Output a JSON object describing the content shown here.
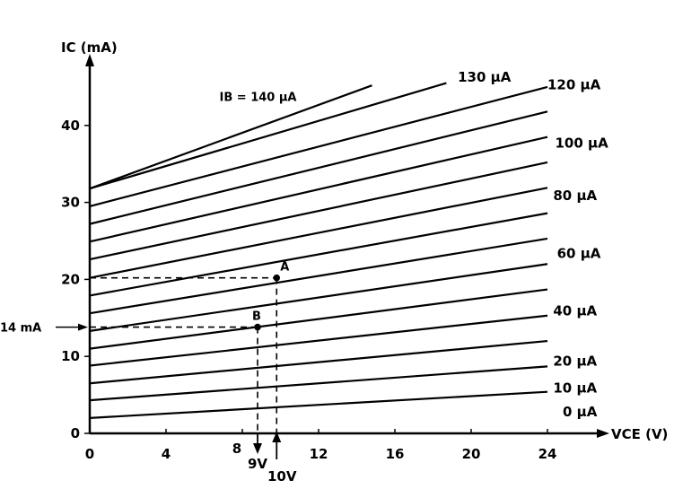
{
  "chart_data": {
    "type": "line",
    "title": "",
    "xlabel": "VCE (V)",
    "ylabel": "IC (mA)",
    "xlim": [
      0,
      24
    ],
    "ylim": [
      0,
      45
    ],
    "xticks": [
      0,
      4,
      8,
      12,
      16,
      20,
      24
    ],
    "yticks": [
      0,
      10,
      20,
      30,
      40
    ],
    "grid": false,
    "legend": "none",
    "series": [
      {
        "x": [
          0,
          24
        ],
        "y": [
          2.0,
          5.4
        ]
      },
      {
        "x": [
          0,
          24
        ],
        "y": [
          4.3,
          8.7
        ]
      },
      {
        "x": [
          0,
          24
        ],
        "y": [
          6.5,
          12.0
        ]
      },
      {
        "x": [
          0,
          24
        ],
        "y": [
          8.8,
          15.3
        ]
      },
      {
        "x": [
          0,
          24
        ],
        "y": [
          11.0,
          18.7
        ]
      },
      {
        "x": [
          0,
          24
        ],
        "y": [
          13.3,
          22.0
        ]
      },
      {
        "x": [
          0,
          24
        ],
        "y": [
          15.6,
          25.3
        ]
      },
      {
        "x": [
          0,
          24
        ],
        "y": [
          17.9,
          28.6
        ]
      },
      {
        "x": [
          0,
          24
        ],
        "y": [
          20.2,
          31.9
        ]
      },
      {
        "x": [
          0,
          24
        ],
        "y": [
          22.6,
          35.2
        ]
      },
      {
        "x": [
          0,
          24
        ],
        "y": [
          24.9,
          38.5
        ]
      },
      {
        "x": [
          0,
          24
        ],
        "y": [
          27.2,
          41.8
        ]
      },
      {
        "x": [
          0,
          24
        ],
        "y": [
          29.5,
          45.0
        ]
      },
      {
        "x": [
          0,
          18.7
        ],
        "y": [
          31.8,
          45.5
        ]
      },
      {
        "x": [
          0,
          14.8
        ],
        "y": [
          31.8,
          45.2
        ]
      }
    ],
    "curve_labels": [
      {
        "text": "0 µA",
        "x": 24.8,
        "y": 2.2
      },
      {
        "text": "10 µA",
        "x": 24.3,
        "y": 5.3
      },
      {
        "text": "20 µA",
        "x": 24.3,
        "y": 8.8
      },
      {
        "text": "40 µA",
        "x": 24.3,
        "y": 15.3
      },
      {
        "text": "60 µA",
        "x": 24.5,
        "y": 22.8
      },
      {
        "text": "80 µA",
        "x": 24.3,
        "y": 30.3
      },
      {
        "text": "100 µA",
        "x": 24.4,
        "y": 37.1
      },
      {
        "text": "120 µA",
        "x": 24.0,
        "y": 44.7
      },
      {
        "text": "130 µA",
        "x": 19.3,
        "y": 45.7
      },
      {
        "text": "IB = 140 µA",
        "x": 6.8,
        "y": 43.2
      }
    ],
    "points": [
      {
        "label": "A",
        "x": 9.8,
        "y": 20.2
      },
      {
        "label": "B",
        "x": 8.8,
        "y": 13.8
      }
    ],
    "annotations": {
      "y_marker": "14 mA",
      "x_marker_b": "9V",
      "x_marker_a": "10V"
    }
  }
}
